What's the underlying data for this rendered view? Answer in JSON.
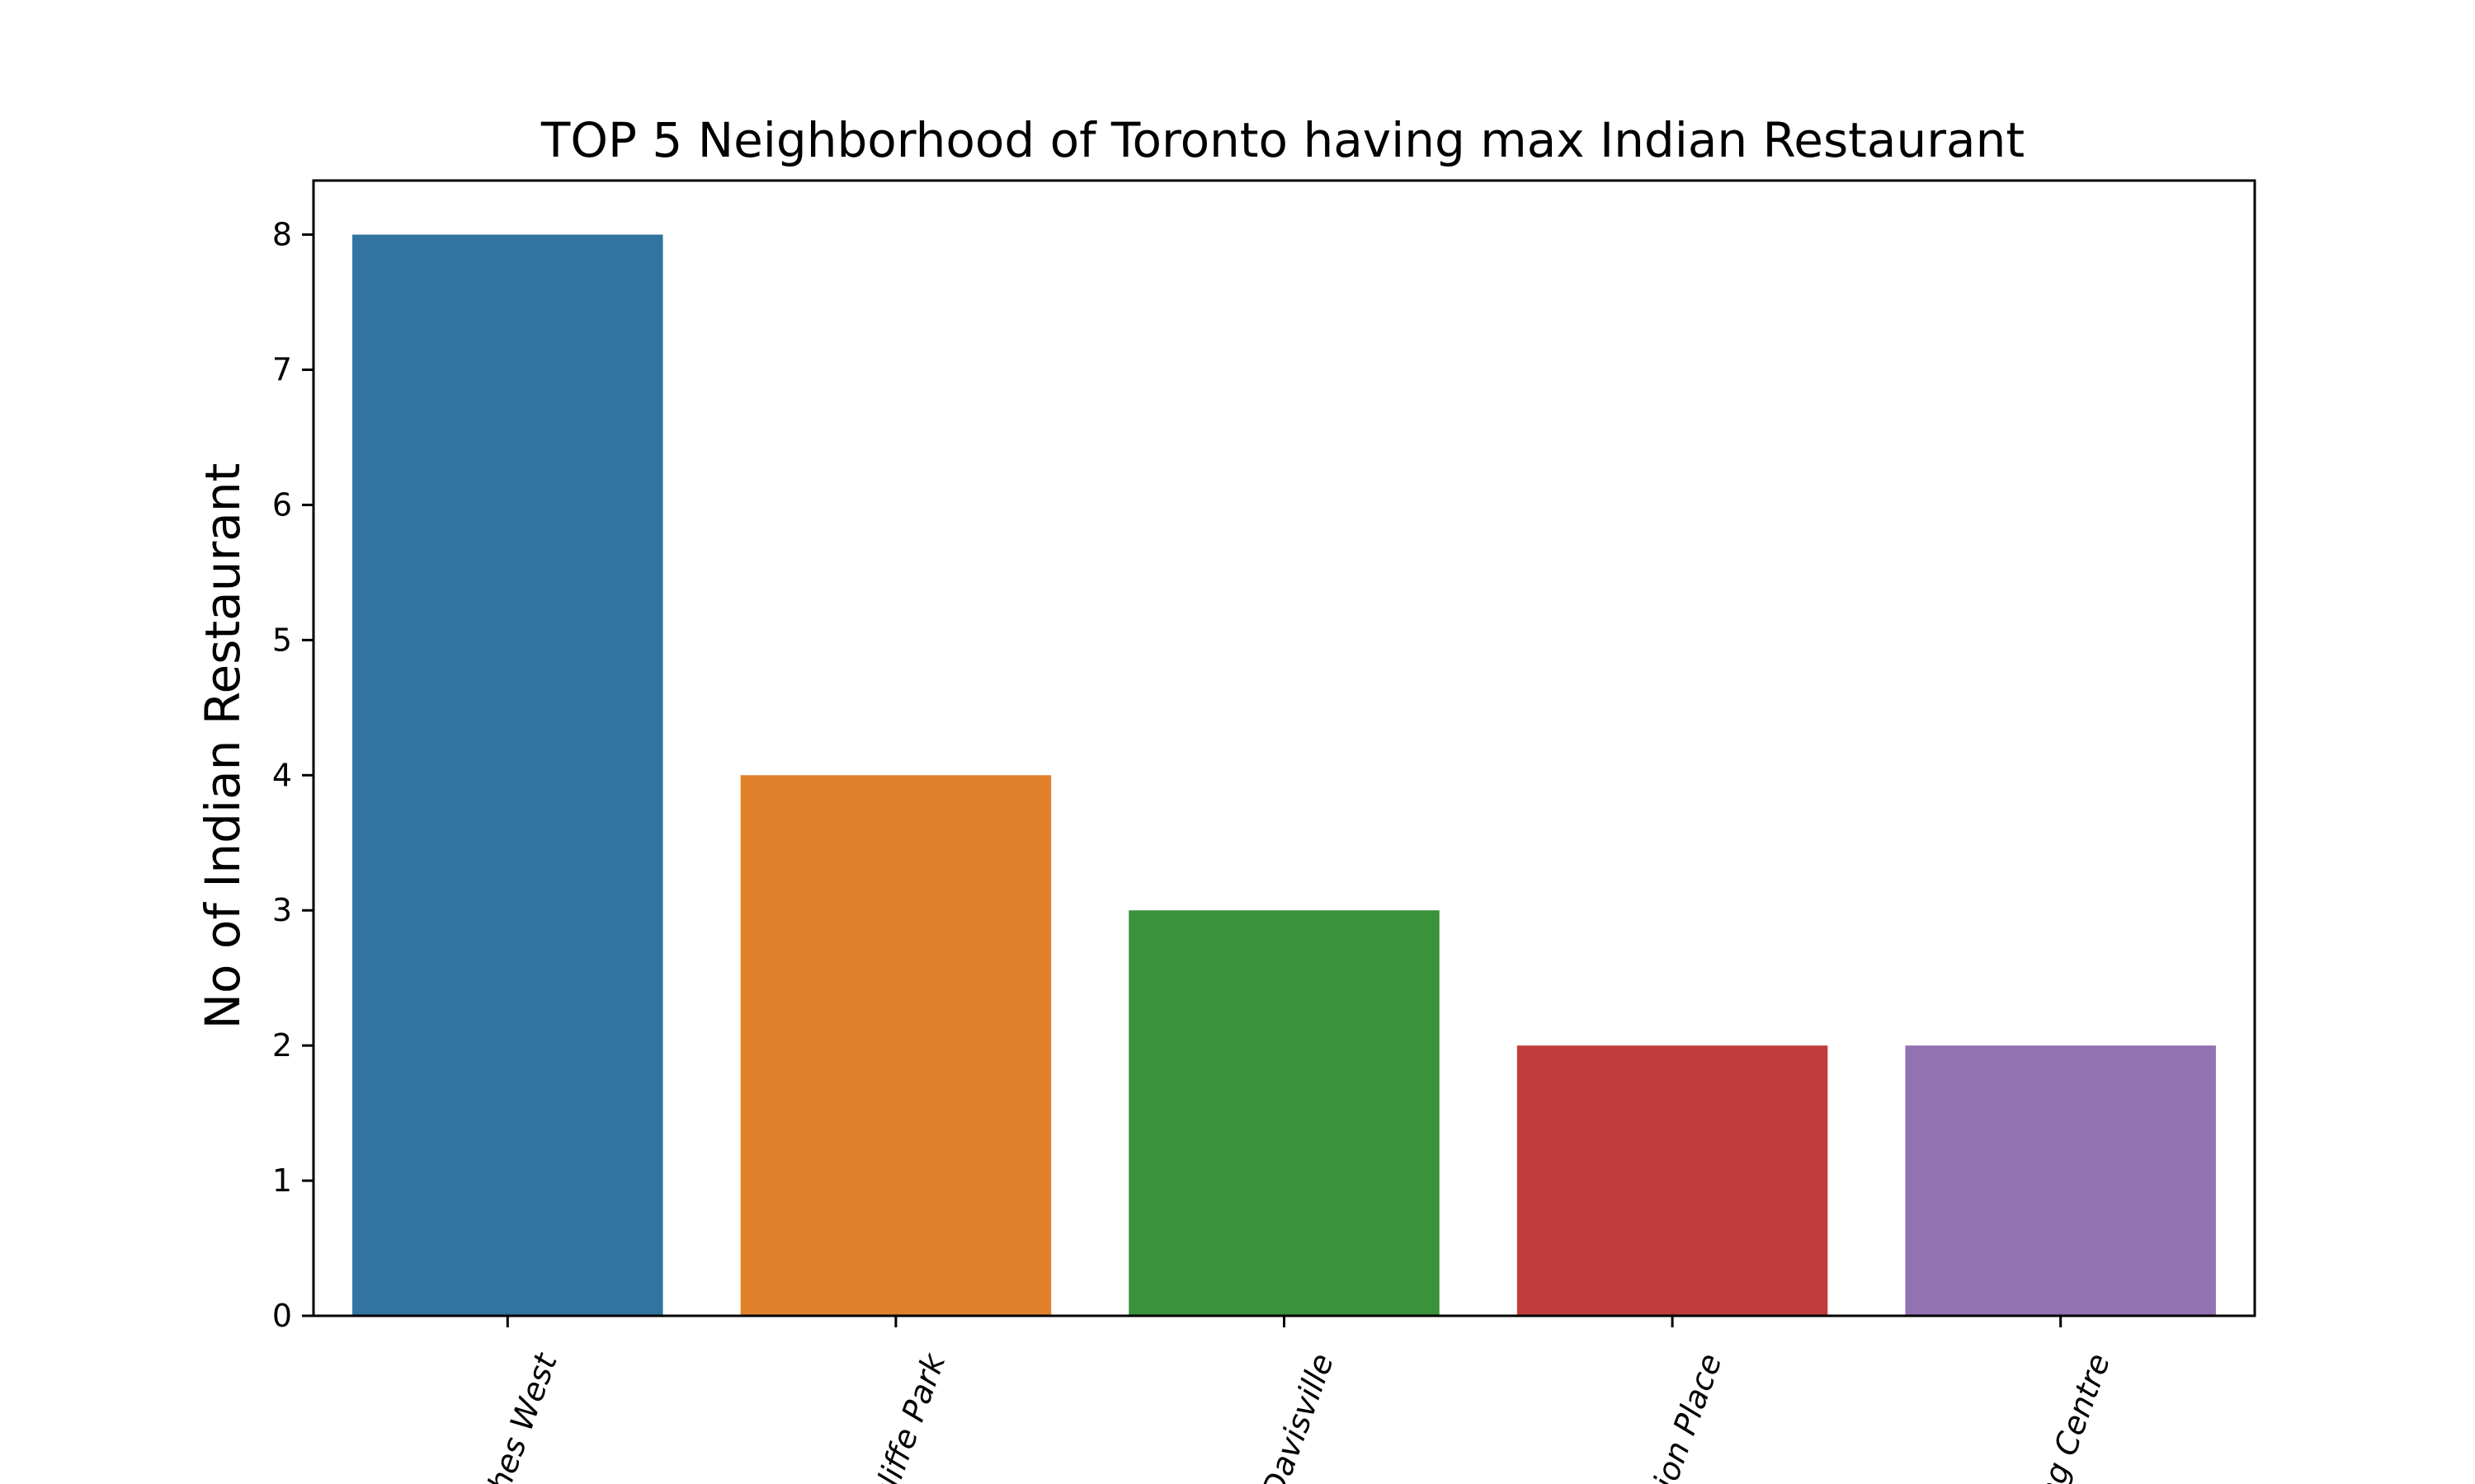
{
  "chart_data": {
    "type": "bar",
    "title": "TOP 5 Neighborhood of Toronto having max Indian Restaurant",
    "xlabel": "",
    "ylabel": "No of Indian Restaurant",
    "categories": [
      "ches West",
      "cliffe Park",
      "Davisville",
      "tion Place",
      "ng Centre"
    ],
    "values": [
      8,
      4,
      3,
      2,
      2
    ],
    "colors": [
      "#3274a1",
      "#e1812c",
      "#3a923a",
      "#c03d3e",
      "#9372b2"
    ],
    "ylim": [
      0,
      8.4
    ],
    "yticks": [
      "0",
      "1",
      "2",
      "3",
      "4",
      "5",
      "6",
      "7",
      "8"
    ],
    "grid": false,
    "legend": "none"
  }
}
